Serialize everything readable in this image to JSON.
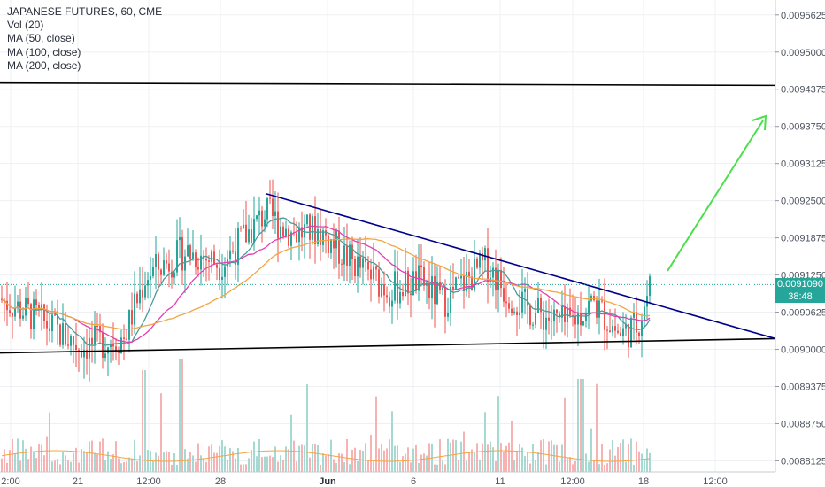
{
  "legend": {
    "symbol": "JAPANESE FUTURES, 60, CME",
    "indicators": [
      "Vol (20)",
      "MA (50, close)",
      "MA (100, close)",
      "MA (200, close)"
    ]
  },
  "price_tag": {
    "value": "0.0091090",
    "timer": "38:48",
    "color": "#26a69a",
    "timer_color": "#2a2e39"
  },
  "colors": {
    "up": "#26a69a",
    "down": "#ef5350",
    "vol_up": "#a5d9d2",
    "vol_down": "#f5b4b3",
    "ma50": "#4d9a9a",
    "ma100": "#e040b0",
    "ma200": "#f2a540",
    "trend_dark": "#000000",
    "trend_blue": "#00008b",
    "arrow": "#4cdf4c"
  },
  "chart_data": {
    "type": "candlestick",
    "y_tick_labels": [
      "0.0095625",
      "0.0095000",
      "0.0094375",
      "0.0093750",
      "0.0093125",
      "0.0092500",
      "0.0091875",
      "0.0091250",
      "0.0090625",
      "0.0090000",
      "0.0089375",
      "0.0088750",
      "0.0088125"
    ],
    "x_tick_labels": [
      "2:00",
      "21",
      "12:00",
      "28",
      "Jun",
      "6",
      "11",
      "12:00",
      "18",
      "12:00"
    ],
    "ylim": [
      0.0087938,
      0.0095875
    ],
    "trendlines": [
      {
        "name": "resistance",
        "y_start": 0.009448,
        "y_end": 0.009444
      },
      {
        "name": "support",
        "y_start": 0.008994,
        "y_end": 0.009018
      },
      {
        "name": "descending",
        "y_start": 0.009262,
        "y_end": 0.009018
      }
    ],
    "current_price": 0.009109
  }
}
